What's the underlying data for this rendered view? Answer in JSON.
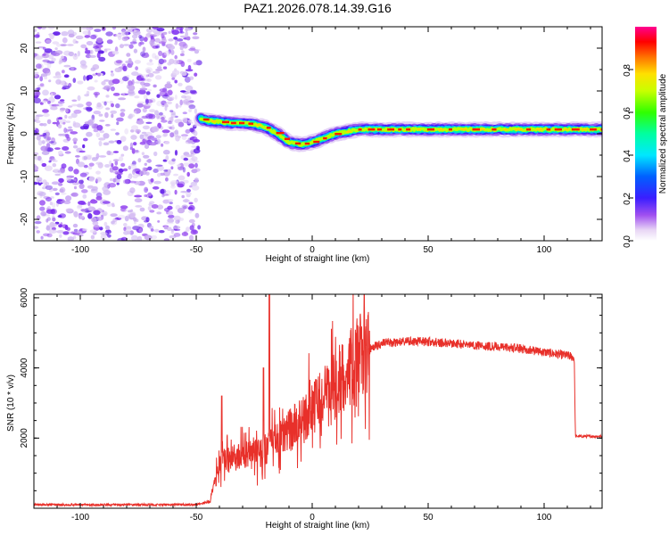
{
  "title": "PAZ1.2026.078.14.39.G16",
  "chart_data": [
    {
      "type": "heatmap",
      "name": "spectrogram",
      "xlabel": "Height of straight line (km)",
      "ylabel": "Frequency (Hz)",
      "xlim": [
        -120,
        125
      ],
      "ylim": [
        -25,
        25
      ],
      "xticks": [
        -100,
        -50,
        0,
        50,
        100
      ],
      "yticks": [
        -20,
        -10,
        0,
        10,
        20
      ],
      "colorbar": {
        "label": "Normalized spectral amplitude",
        "range": [
          0,
          1
        ],
        "ticks": [
          "0.0",
          "0.2",
          "0.4",
          "0.6",
          "0.8"
        ],
        "colormap": "rainbow (white-violet-blue-cyan-green-yellow-red-magenta)"
      },
      "noise_region_x": [
        -120,
        -48
      ],
      "signal_ridge": {
        "x": [
          -48,
          -45,
          -40,
          -35,
          -30,
          -25,
          -20,
          -15,
          -10,
          -5,
          0,
          5,
          10,
          15,
          20,
          30,
          40,
          50,
          60,
          70,
          80,
          90,
          100,
          110,
          125
        ],
        "frequency_hz": [
          3.5,
          3,
          2.8,
          2.5,
          2.5,
          2.2,
          1.5,
          0,
          -2,
          -2.5,
          -2,
          -1,
          0,
          0.5,
          1,
          1,
          1,
          1,
          1,
          1,
          1,
          1,
          1,
          1,
          1
        ]
      }
    },
    {
      "type": "line",
      "name": "snr",
      "xlabel": "Height of straight line (km)",
      "ylabel": "SNR (10 * v/v)",
      "xlim": [
        -120,
        125
      ],
      "ylim": [
        0,
        6100
      ],
      "xticks": [
        -100,
        -50,
        0,
        50,
        100
      ],
      "yticks": [
        2000,
        4000,
        6000
      ],
      "color": "#e8302a",
      "envelope": {
        "x": [
          -120,
          -50,
          -44,
          -42,
          -40,
          -35,
          -30,
          -25,
          -20,
          -15,
          -10,
          -5,
          0,
          5,
          10,
          15,
          20,
          25,
          30,
          40,
          50,
          60,
          70,
          80,
          90,
          100,
          110,
          113,
          113.5,
          125
        ],
        "snr": [
          100,
          100,
          200,
          700,
          1300,
          1400,
          1500,
          1500,
          1700,
          1900,
          2200,
          2500,
          2900,
          3100,
          3500,
          3900,
          4300,
          4550,
          4700,
          4750,
          4750,
          4700,
          4650,
          4600,
          4550,
          4450,
          4350,
          4300,
          2050,
          2050
        ]
      },
      "spikes": [
        {
          "x": -39,
          "snr": 3200
        },
        {
          "x": -21,
          "snr": 4000
        },
        {
          "x": -18.5,
          "snr": 6100
        }
      ]
    }
  ]
}
